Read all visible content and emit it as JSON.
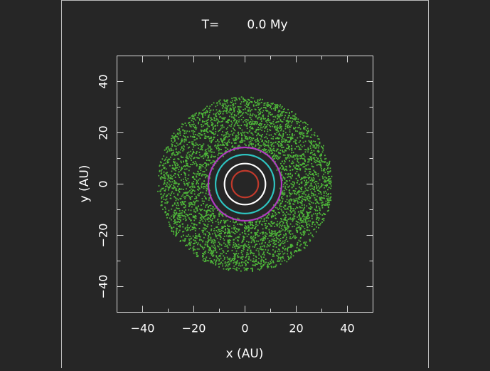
{
  "chart_data": {
    "type": "scatter",
    "title_label": "T=",
    "title_value": "0.0 My",
    "xlabel": "x (AU)",
    "ylabel": "y (AU)",
    "xlim": [
      -50,
      50
    ],
    "ylim": [
      -50,
      50
    ],
    "xticks": [
      -40,
      -20,
      0,
      20,
      40
    ],
    "yticks": [
      -40,
      -20,
      0,
      20,
      40
    ],
    "xtick_labels": [
      "−40",
      "−20",
      "0",
      "20",
      "40"
    ],
    "ytick_labels": [
      "−40",
      "−20",
      "0",
      "20",
      "40"
    ],
    "grid": false,
    "series": [
      {
        "kind": "disk",
        "color": "#4fb83a",
        "inner_radius": 14,
        "outer_radius": 34,
        "particle_count": 4200
      },
      {
        "kind": "orbit",
        "color": "#c0392b",
        "radius": 5.2
      },
      {
        "kind": "orbit",
        "color": "#ffffff",
        "radius": 8.0
      },
      {
        "kind": "orbit",
        "color": "#2ec4c0",
        "radius": 11.5
      },
      {
        "kind": "orbit",
        "color": "#b03ac0",
        "radius": 14.3
      }
    ]
  }
}
